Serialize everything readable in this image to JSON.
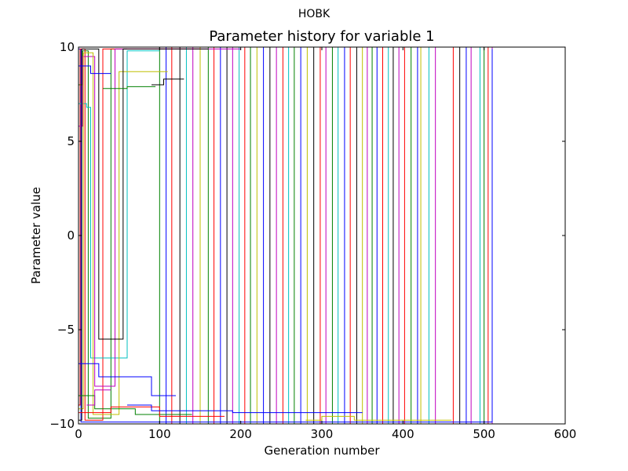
{
  "chart_data": {
    "type": "line",
    "suptitle": "HOBK",
    "title": "Parameter history for variable 1",
    "xlabel": "Generation number",
    "ylabel": "Parameter value",
    "xlim": [
      0,
      600
    ],
    "ylim": [
      -10,
      10
    ],
    "xticks": [
      0,
      100,
      200,
      300,
      400,
      500,
      600
    ],
    "yticks": [
      -10,
      -5,
      0,
      5,
      10
    ],
    "xtick_labels": [
      "0",
      "100",
      "200",
      "300",
      "400",
      "500",
      "600"
    ],
    "ytick_labels": [
      "−10",
      "−5",
      "0",
      "5",
      "10"
    ],
    "grid": false,
    "legend": "none",
    "series_colors": [
      "#0000ff",
      "#008000",
      "#ff0000",
      "#00bfbf",
      "#bf00bf",
      "#bfbf00",
      "#000000"
    ],
    "series": [
      {
        "color": "#0000ff",
        "x": [
          0,
          3,
          3,
          510,
          510
        ],
        "y": [
          9.9,
          9.9,
          -9.9,
          -9.9,
          9.9
        ]
      },
      {
        "color": "#008000",
        "x": [
          0,
          5,
          5,
          12,
          12,
          40,
          40,
          60
        ],
        "y": [
          8.0,
          8.0,
          9.8,
          9.8,
          -9.7,
          -9.7,
          9.9,
          9.9
        ]
      },
      {
        "color": "#ff0000",
        "x": [
          0,
          2,
          2,
          8,
          8,
          30,
          30,
          150
        ],
        "y": [
          -9.0,
          -9.0,
          9.9,
          9.9,
          -9.8,
          -9.8,
          9.9,
          9.9
        ]
      },
      {
        "color": "#00bfbf",
        "x": [
          0,
          10,
          10,
          15,
          15,
          60,
          60,
          100
        ],
        "y": [
          7.0,
          7.0,
          6.8,
          6.8,
          -6.5,
          -6.5,
          9.8,
          9.8
        ]
      },
      {
        "color": "#bf00bf",
        "x": [
          0,
          5,
          5,
          20,
          20,
          45,
          45,
          200
        ],
        "y": [
          5.8,
          5.8,
          9.5,
          9.5,
          -8.0,
          -8.0,
          9.9,
          9.9
        ]
      },
      {
        "color": "#bfbf00",
        "x": [
          0,
          6,
          6,
          18,
          18,
          50,
          50,
          110
        ],
        "y": [
          -9.2,
          -9.2,
          9.7,
          9.7,
          -9.5,
          -9.5,
          8.7,
          8.7
        ]
      },
      {
        "color": "#000000",
        "x": [
          0,
          4,
          4,
          25,
          25,
          55,
          55,
          160
        ],
        "y": [
          -9.8,
          -9.8,
          9.9,
          9.9,
          -5.5,
          -5.5,
          9.9,
          9.9
        ]
      },
      {
        "color": "#0000ff",
        "x": [
          0,
          25,
          25,
          90,
          90,
          120
        ],
        "y": [
          -6.8,
          -6.8,
          -7.5,
          -7.5,
          -8.5,
          -8.5
        ]
      },
      {
        "color": "#008000",
        "x": [
          0,
          20,
          20,
          70,
          70,
          140
        ],
        "y": [
          -8.5,
          -8.5,
          -9.2,
          -9.2,
          -9.5,
          -9.5
        ]
      },
      {
        "color": "#ff0000",
        "x": [
          0,
          40,
          40,
          100,
          100,
          180
        ],
        "y": [
          -9.4,
          -9.4,
          -9.1,
          -9.1,
          -9.6,
          -9.6
        ]
      },
      {
        "color": "#0000ff",
        "x": [
          60,
          90,
          90,
          190,
          190,
          350
        ],
        "y": [
          -9.0,
          -9.0,
          -9.3,
          -9.3,
          -9.4,
          -9.4
        ]
      },
      {
        "color": "#bfbf00",
        "x": [
          280,
          300,
          300,
          340,
          340,
          460
        ],
        "y": [
          -9.8,
          -9.8,
          -9.6,
          -9.6,
          -9.8,
          -9.8
        ]
      },
      {
        "color": "#000000",
        "x": [
          90,
          105,
          105,
          130
        ],
        "y": [
          8.0,
          8.0,
          8.3,
          8.3
        ]
      },
      {
        "color": "#008000",
        "x": [
          30,
          60,
          60,
          95
        ],
        "y": [
          7.8,
          7.8,
          7.9,
          7.9
        ]
      },
      {
        "color": "#0000ff",
        "x": [
          0,
          15,
          15,
          40
        ],
        "y": [
          9.0,
          9.0,
          8.6,
          8.6
        ]
      },
      {
        "color": "#bf00bf",
        "x": [
          10,
          20,
          20,
          40
        ],
        "y": [
          -9.0,
          -9.0,
          -8.2,
          -8.2
        ]
      }
    ],
    "crossing_lines": [
      {
        "color": "#008000",
        "x": 100,
        "from": -10,
        "to": 10
      },
      {
        "color": "#0000ff",
        "x": 108,
        "from": 10,
        "to": -10
      },
      {
        "color": "#ff0000",
        "x": 115,
        "from": -10,
        "to": 10
      },
      {
        "color": "#000000",
        "x": 125,
        "from": 10,
        "to": -10
      },
      {
        "color": "#00bfbf",
        "x": 133,
        "from": -10,
        "to": 10
      },
      {
        "color": "#bf00bf",
        "x": 141,
        "from": 10,
        "to": -10
      },
      {
        "color": "#bfbf00",
        "x": 150,
        "from": -10,
        "to": 10
      },
      {
        "color": "#008000",
        "x": 160,
        "from": 10,
        "to": -10
      },
      {
        "color": "#ff0000",
        "x": 167,
        "from": -10,
        "to": 10
      },
      {
        "color": "#0000ff",
        "x": 175,
        "from": 10,
        "to": -10
      },
      {
        "color": "#000000",
        "x": 183,
        "from": -10,
        "to": 10
      },
      {
        "color": "#bf00bf",
        "x": 190,
        "from": 10,
        "to": -10
      },
      {
        "color": "#00bfbf",
        "x": 198,
        "from": -10,
        "to": 10
      },
      {
        "color": "#ff0000",
        "x": 205,
        "from": 10,
        "to": -10
      },
      {
        "color": "#008000",
        "x": 212,
        "from": -10,
        "to": 10
      },
      {
        "color": "#bfbf00",
        "x": 220,
        "from": 10,
        "to": -10
      },
      {
        "color": "#0000ff",
        "x": 228,
        "from": -10,
        "to": 10
      },
      {
        "color": "#000000",
        "x": 236,
        "from": 10,
        "to": -10
      },
      {
        "color": "#bf00bf",
        "x": 244,
        "from": -10,
        "to": 10
      },
      {
        "color": "#ff0000",
        "x": 252,
        "from": 10,
        "to": -10
      },
      {
        "color": "#00bfbf",
        "x": 259,
        "from": -10,
        "to": 10
      },
      {
        "color": "#008000",
        "x": 266,
        "from": 10,
        "to": -10
      },
      {
        "color": "#0000ff",
        "x": 274,
        "from": -10,
        "to": 10
      },
      {
        "color": "#bfbf00",
        "x": 282,
        "from": 10,
        "to": -10
      },
      {
        "color": "#000000",
        "x": 290,
        "from": -10,
        "to": 10
      },
      {
        "color": "#ff0000",
        "x": 298,
        "from": 10,
        "to": -10
      },
      {
        "color": "#bf00bf",
        "x": 305,
        "from": -10,
        "to": 10
      },
      {
        "color": "#008000",
        "x": 313,
        "from": 10,
        "to": -10
      },
      {
        "color": "#00bfbf",
        "x": 320,
        "from": -10,
        "to": 10
      },
      {
        "color": "#0000ff",
        "x": 328,
        "from": 10,
        "to": -10
      },
      {
        "color": "#ff0000",
        "x": 335,
        "from": -10,
        "to": 10
      },
      {
        "color": "#000000",
        "x": 343,
        "from": 10,
        "to": -10
      },
      {
        "color": "#bfbf00",
        "x": 350,
        "from": -10,
        "to": 10
      },
      {
        "color": "#bf00bf",
        "x": 356,
        "from": 10,
        "to": -10
      },
      {
        "color": "#008000",
        "x": 362,
        "from": -10,
        "to": 10
      },
      {
        "color": "#0000ff",
        "x": 368,
        "from": 10,
        "to": -10
      },
      {
        "color": "#ff0000",
        "x": 375,
        "from": -10,
        "to": 10
      },
      {
        "color": "#00bfbf",
        "x": 382,
        "from": 10,
        "to": -10
      },
      {
        "color": "#000000",
        "x": 388,
        "from": -10,
        "to": 10
      },
      {
        "color": "#bf00bf",
        "x": 395,
        "from": 10,
        "to": -10
      },
      {
        "color": "#ff0000",
        "x": 402,
        "from": -10,
        "to": 10
      },
      {
        "color": "#008000",
        "x": 410,
        "from": 10,
        "to": -10
      },
      {
        "color": "#0000ff",
        "x": 418,
        "from": -10,
        "to": 10
      },
      {
        "color": "#bfbf00",
        "x": 422,
        "from": 10,
        "to": -10
      },
      {
        "color": "#00bfbf",
        "x": 432,
        "from": -10,
        "to": 10
      },
      {
        "color": "#bf00bf",
        "x": 440,
        "from": 10,
        "to": -10
      },
      {
        "color": "#ff0000",
        "x": 462,
        "from": -10,
        "to": 10
      },
      {
        "color": "#000000",
        "x": 470,
        "from": 10,
        "to": -10
      },
      {
        "color": "#0000ff",
        "x": 478,
        "from": -10,
        "to": 10
      },
      {
        "color": "#bf00bf",
        "x": 484,
        "from": 10,
        "to": -10
      },
      {
        "color": "#00bfbf",
        "x": 495,
        "from": -10,
        "to": 10
      },
      {
        "color": "#008000",
        "x": 500,
        "from": 10,
        "to": -10
      },
      {
        "color": "#ff0000",
        "x": 505,
        "from": -10,
        "to": 10
      },
      {
        "color": "#bf00bf",
        "x": 510,
        "from": 10,
        "to": -10
      }
    ]
  }
}
